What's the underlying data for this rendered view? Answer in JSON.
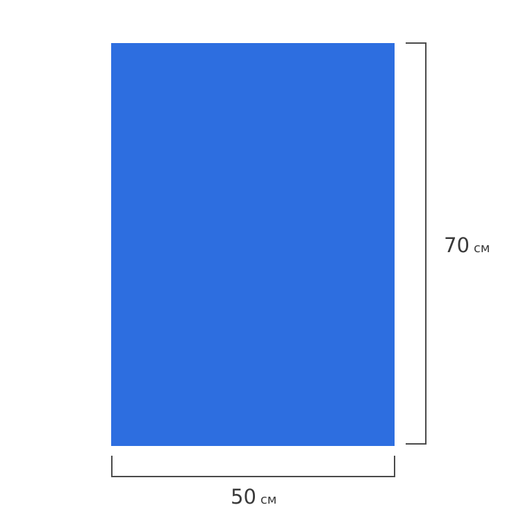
{
  "sheet": {
    "color": "#2d6ee0"
  },
  "dimensions": {
    "height": {
      "value": "70",
      "unit": "см"
    },
    "width": {
      "value": "50",
      "unit": "см"
    }
  },
  "line_color": "#4a4a4a"
}
